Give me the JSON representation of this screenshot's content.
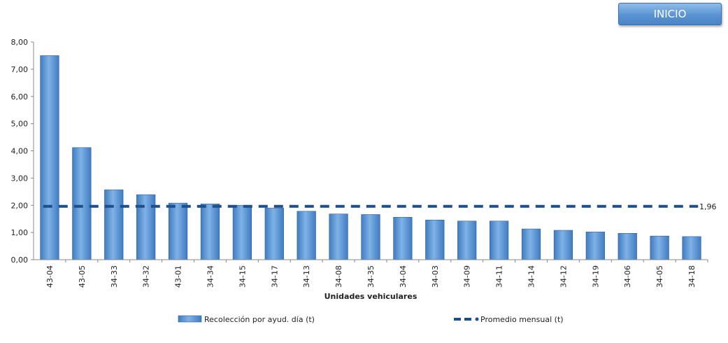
{
  "header": {
    "inicio_label": "INICIO"
  },
  "colors": {
    "bar": "#3f7cc2",
    "bar_light": "#7fb2e6",
    "avg_line": "#1f4e8c"
  },
  "chart_data": {
    "type": "bar",
    "xlabel": "Unidades vehiculares",
    "ylabel": "",
    "ylim": [
      0,
      8
    ],
    "yticks": [
      "0,00",
      "1,00",
      "2,00",
      "3,00",
      "4,00",
      "5,00",
      "6,00",
      "7,00",
      "8,00"
    ],
    "categories": [
      "43-04",
      "43-05",
      "34-33",
      "34-32",
      "43-01",
      "34-34",
      "34-15",
      "34-17",
      "34-13",
      "34-08",
      "34-35",
      "34-04",
      "34-03",
      "34-09",
      "34-11",
      "34-14",
      "34-12",
      "34-19",
      "34-06",
      "34-05",
      "34-18"
    ],
    "series": [
      {
        "name": "Recolección por ayud. día (t)",
        "type": "bar",
        "values": [
          7.5,
          4.12,
          2.57,
          2.39,
          2.08,
          2.05,
          2.0,
          1.9,
          1.78,
          1.68,
          1.66,
          1.56,
          1.46,
          1.42,
          1.42,
          1.13,
          1.08,
          1.02,
          0.97,
          0.87,
          0.85
        ]
      },
      {
        "name": "Promedio mensual (t)",
        "type": "line",
        "style": "dashed",
        "value": 1.96,
        "label": "1,96"
      }
    ],
    "legend_position": "bottom",
    "grid": false
  }
}
